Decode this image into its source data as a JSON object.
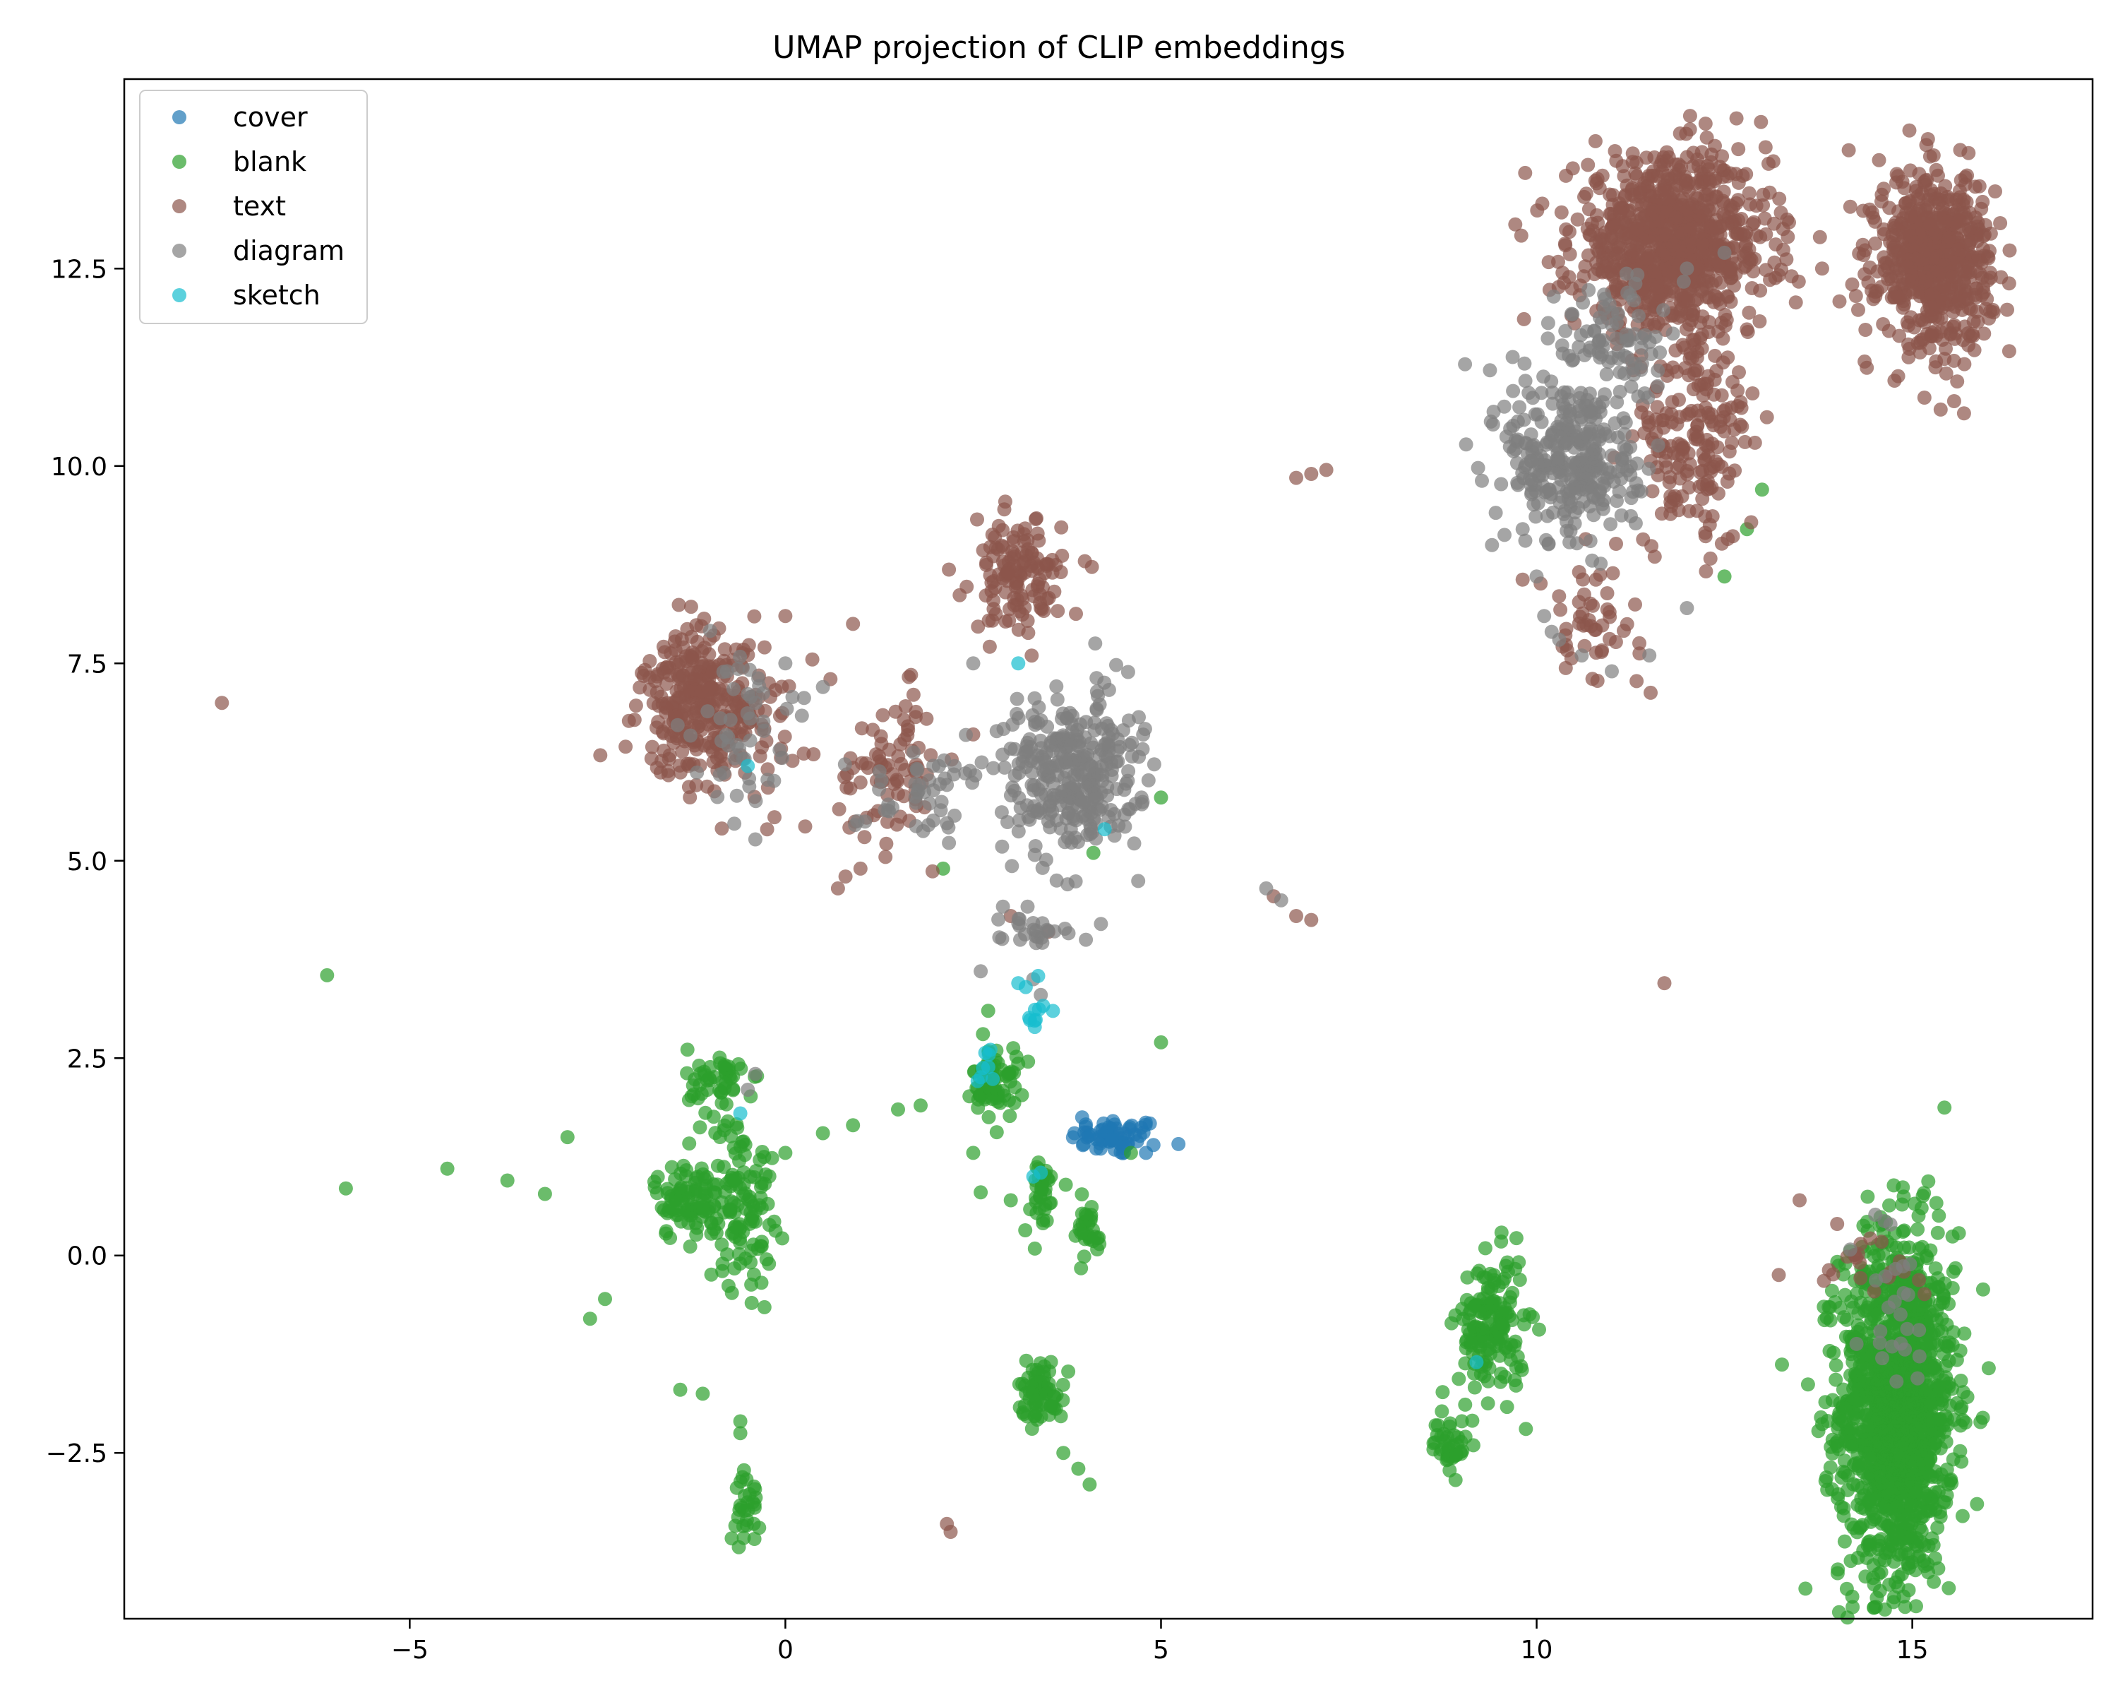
{
  "chart_data": {
    "type": "scatter",
    "title": "UMAP projection of CLIP embeddings",
    "xlabel": "",
    "ylabel": "",
    "xlim": [
      -8.8,
      17.4
    ],
    "ylim": [
      -4.6,
      14.9
    ],
    "x_ticks": [
      -5,
      0,
      5,
      10,
      15
    ],
    "x_tick_labels": [
      "−5",
      "0",
      "5",
      "10",
      "15"
    ],
    "y_ticks": [
      -2.5,
      0.0,
      2.5,
      5.0,
      7.5,
      10.0,
      12.5
    ],
    "y_tick_labels": [
      "−2.5",
      "0.0",
      "2.5",
      "5.0",
      "7.5",
      "10.0",
      "12.5"
    ],
    "grid": false,
    "legend_position": "top-left",
    "series": [
      {
        "name": "cover",
        "color": "#1f77b4",
        "clusters": [
          {
            "center": [
              4.4,
              1.5
            ],
            "spread": [
              0.3,
              0.12
            ],
            "count": 60
          }
        ],
        "points": [
          [
            3.95,
            1.75
          ],
          [
            4.8,
            1.3
          ],
          [
            4.9,
            1.4
          ]
        ]
      },
      {
        "name": "blank",
        "color": "#2ca02c",
        "clusters": [
          {
            "center": [
              14.8,
              -1.9
            ],
            "spread": [
              0.38,
              1.1
            ],
            "count": 1400
          },
          {
            "center": [
              9.4,
              -0.9
            ],
            "spread": [
              0.22,
              0.45
            ],
            "count": 160
          },
          {
            "center": [
              8.85,
              -2.4
            ],
            "spread": [
              0.12,
              0.18
            ],
            "count": 40
          },
          {
            "center": [
              -0.6,
              0.7
            ],
            "spread": [
              0.22,
              0.55
            ],
            "count": 120
          },
          {
            "center": [
              -1.3,
              0.7
            ],
            "spread": [
              0.22,
              0.25
            ],
            "count": 90
          },
          {
            "center": [
              -0.9,
              2.2
            ],
            "spread": [
              0.2,
              0.22
            ],
            "count": 50
          },
          {
            "center": [
              2.8,
              2.2
            ],
            "spread": [
              0.15,
              0.22
            ],
            "count": 70
          },
          {
            "center": [
              3.4,
              -1.7
            ],
            "spread": [
              0.15,
              0.2
            ],
            "count": 70
          },
          {
            "center": [
              3.4,
              0.75
            ],
            "spread": [
              0.12,
              0.25
            ],
            "count": 35
          },
          {
            "center": [
              4.0,
              0.3
            ],
            "spread": [
              0.12,
              0.2
            ],
            "count": 30
          },
          {
            "center": [
              -0.5,
              -3.2
            ],
            "spread": [
              0.08,
              0.22
            ],
            "count": 30
          }
        ],
        "points": [
          [
            -6.1,
            3.55
          ],
          [
            -5.85,
            0.85
          ],
          [
            -4.5,
            1.1
          ],
          [
            -3.7,
            0.95
          ],
          [
            -3.2,
            0.78
          ],
          [
            -2.9,
            1.5
          ],
          [
            -2.6,
            -0.8
          ],
          [
            -2.4,
            -0.55
          ],
          [
            -1.4,
            -1.7
          ],
          [
            -1.1,
            -1.75
          ],
          [
            -0.6,
            -2.1
          ],
          [
            -0.6,
            -2.25
          ],
          [
            0.0,
            1.3
          ],
          [
            0.5,
            1.55
          ],
          [
            0.9,
            1.65
          ],
          [
            1.5,
            1.85
          ],
          [
            1.8,
            1.9
          ],
          [
            2.5,
            1.3
          ],
          [
            2.6,
            0.8
          ],
          [
            2.7,
            3.1
          ],
          [
            3.7,
            -2.5
          ],
          [
            3.9,
            -2.7
          ],
          [
            4.05,
            -2.9
          ],
          [
            5.0,
            2.7
          ],
          [
            5.0,
            5.8
          ],
          [
            4.1,
            5.1
          ],
          [
            2.1,
            4.9
          ],
          [
            12.5,
            8.6
          ],
          [
            12.8,
            9.2
          ],
          [
            13.0,
            9.7
          ],
          [
            4.6,
            1.3
          ],
          [
            3.0,
            0.7
          ]
        ]
      },
      {
        "name": "text",
        "color": "#8c564b",
        "clusters": [
          {
            "center": [
              11.8,
              12.8
            ],
            "spread": [
              0.65,
              0.55
            ],
            "count": 900
          },
          {
            "center": [
              15.3,
              12.6
            ],
            "spread": [
              0.38,
              0.55
            ],
            "count": 600
          },
          {
            "center": [
              -1.2,
              7.0
            ],
            "spread": [
              0.35,
              0.45
            ],
            "count": 260
          },
          {
            "center": [
              3.1,
              8.6
            ],
            "spread": [
              0.3,
              0.35
            ],
            "count": 130
          },
          {
            "center": [
              12.1,
              10.3
            ],
            "spread": [
              0.4,
              0.65
            ],
            "count": 180
          },
          {
            "center": [
              10.7,
              8.0
            ],
            "spread": [
              0.35,
              0.35
            ],
            "count": 50
          },
          {
            "center": [
              1.4,
              6.2
            ],
            "spread": [
              0.35,
              0.45
            ],
            "count": 80
          },
          {
            "center": [
              -0.5,
              6.8
            ],
            "spread": [
              0.4,
              0.5
            ],
            "count": 80
          },
          {
            "center": [
              14.4,
              -0.1
            ],
            "spread": [
              0.4,
              0.2
            ],
            "count": 20
          }
        ],
        "points": [
          [
            -7.5,
            7.0
          ],
          [
            11.7,
            3.45
          ],
          [
            2.2,
            -3.5
          ],
          [
            2.15,
            -3.4
          ],
          [
            6.8,
            9.85
          ],
          [
            7.0,
            9.9
          ],
          [
            7.2,
            9.95
          ],
          [
            6.5,
            4.55
          ],
          [
            6.8,
            4.3
          ],
          [
            7.0,
            4.25
          ],
          [
            0.8,
            4.8
          ],
          [
            1.0,
            4.9
          ],
          [
            0.7,
            4.65
          ],
          [
            3.0,
            4.3
          ],
          [
            3.5,
            4.1
          ],
          [
            13.5,
            0.7
          ],
          [
            14.0,
            0.4
          ],
          [
            0.0,
            8.1
          ],
          [
            0.9,
            8.0
          ],
          [
            0.6,
            7.3
          ],
          [
            2.5,
            6.6
          ],
          [
            13.8,
            12.5
          ],
          [
            14.2,
            12.3
          ]
        ]
      },
      {
        "name": "diagram",
        "color": "#7f7f7f",
        "clusters": [
          {
            "center": [
              3.8,
              6.1
            ],
            "spread": [
              0.45,
              0.5
            ],
            "count": 320
          },
          {
            "center": [
              10.5,
              10.1
            ],
            "spread": [
              0.45,
              0.55
            ],
            "count": 320
          },
          {
            "center": [
              11.0,
              11.6
            ],
            "spread": [
              0.35,
              0.4
            ],
            "count": 80
          },
          {
            "center": [
              -0.6,
              6.7
            ],
            "spread": [
              0.3,
              0.5
            ],
            "count": 50
          },
          {
            "center": [
              1.8,
              5.9
            ],
            "spread": [
              0.5,
              0.3
            ],
            "count": 50
          },
          {
            "center": [
              14.7,
              -0.5
            ],
            "spread": [
              0.25,
              0.5
            ],
            "count": 25
          },
          {
            "center": [
              3.3,
              4.2
            ],
            "spread": [
              0.25,
              0.15
            ],
            "count": 25
          }
        ],
        "points": [
          [
            6.4,
            4.65
          ],
          [
            6.6,
            4.5
          ],
          [
            10.1,
            8.1
          ],
          [
            10.3,
            7.8
          ],
          [
            10.0,
            8.6
          ],
          [
            10.6,
            7.6
          ],
          [
            11.0,
            7.4
          ],
          [
            11.5,
            7.6
          ],
          [
            12.0,
            8.2
          ],
          [
            10.2,
            7.9
          ],
          [
            3.3,
            3.5
          ],
          [
            3.4,
            3.3
          ],
          [
            2.6,
            3.6
          ],
          [
            -0.4,
            2.3
          ],
          [
            -0.5,
            2.1
          ],
          [
            14.6,
            -1.3
          ],
          [
            0.0,
            7.5
          ],
          [
            0.5,
            7.2
          ],
          [
            2.5,
            7.5
          ],
          [
            3.5,
            5.5
          ],
          [
            3.8,
            5.4
          ],
          [
            4.0,
            4.0
          ],
          [
            4.2,
            4.2
          ],
          [
            12.0,
            12.5
          ],
          [
            12.5,
            12.7
          ]
        ]
      },
      {
        "name": "sketch",
        "color": "#17becf",
        "clusters": [
          {
            "center": [
              3.35,
              3.1
            ],
            "spread": [
              0.08,
              0.15
            ],
            "count": 10
          },
          {
            "center": [
              2.65,
              2.4
            ],
            "spread": [
              0.07,
              0.15
            ],
            "count": 8
          }
        ],
        "points": [
          [
            3.1,
            3.45
          ],
          [
            3.2,
            3.4
          ],
          [
            -0.5,
            6.2
          ],
          [
            3.1,
            7.5
          ],
          [
            4.25,
            5.4
          ],
          [
            3.4,
            1.05
          ],
          [
            -0.6,
            1.8
          ],
          [
            9.2,
            -1.35
          ],
          [
            3.3,
            1.0
          ]
        ]
      }
    ]
  }
}
